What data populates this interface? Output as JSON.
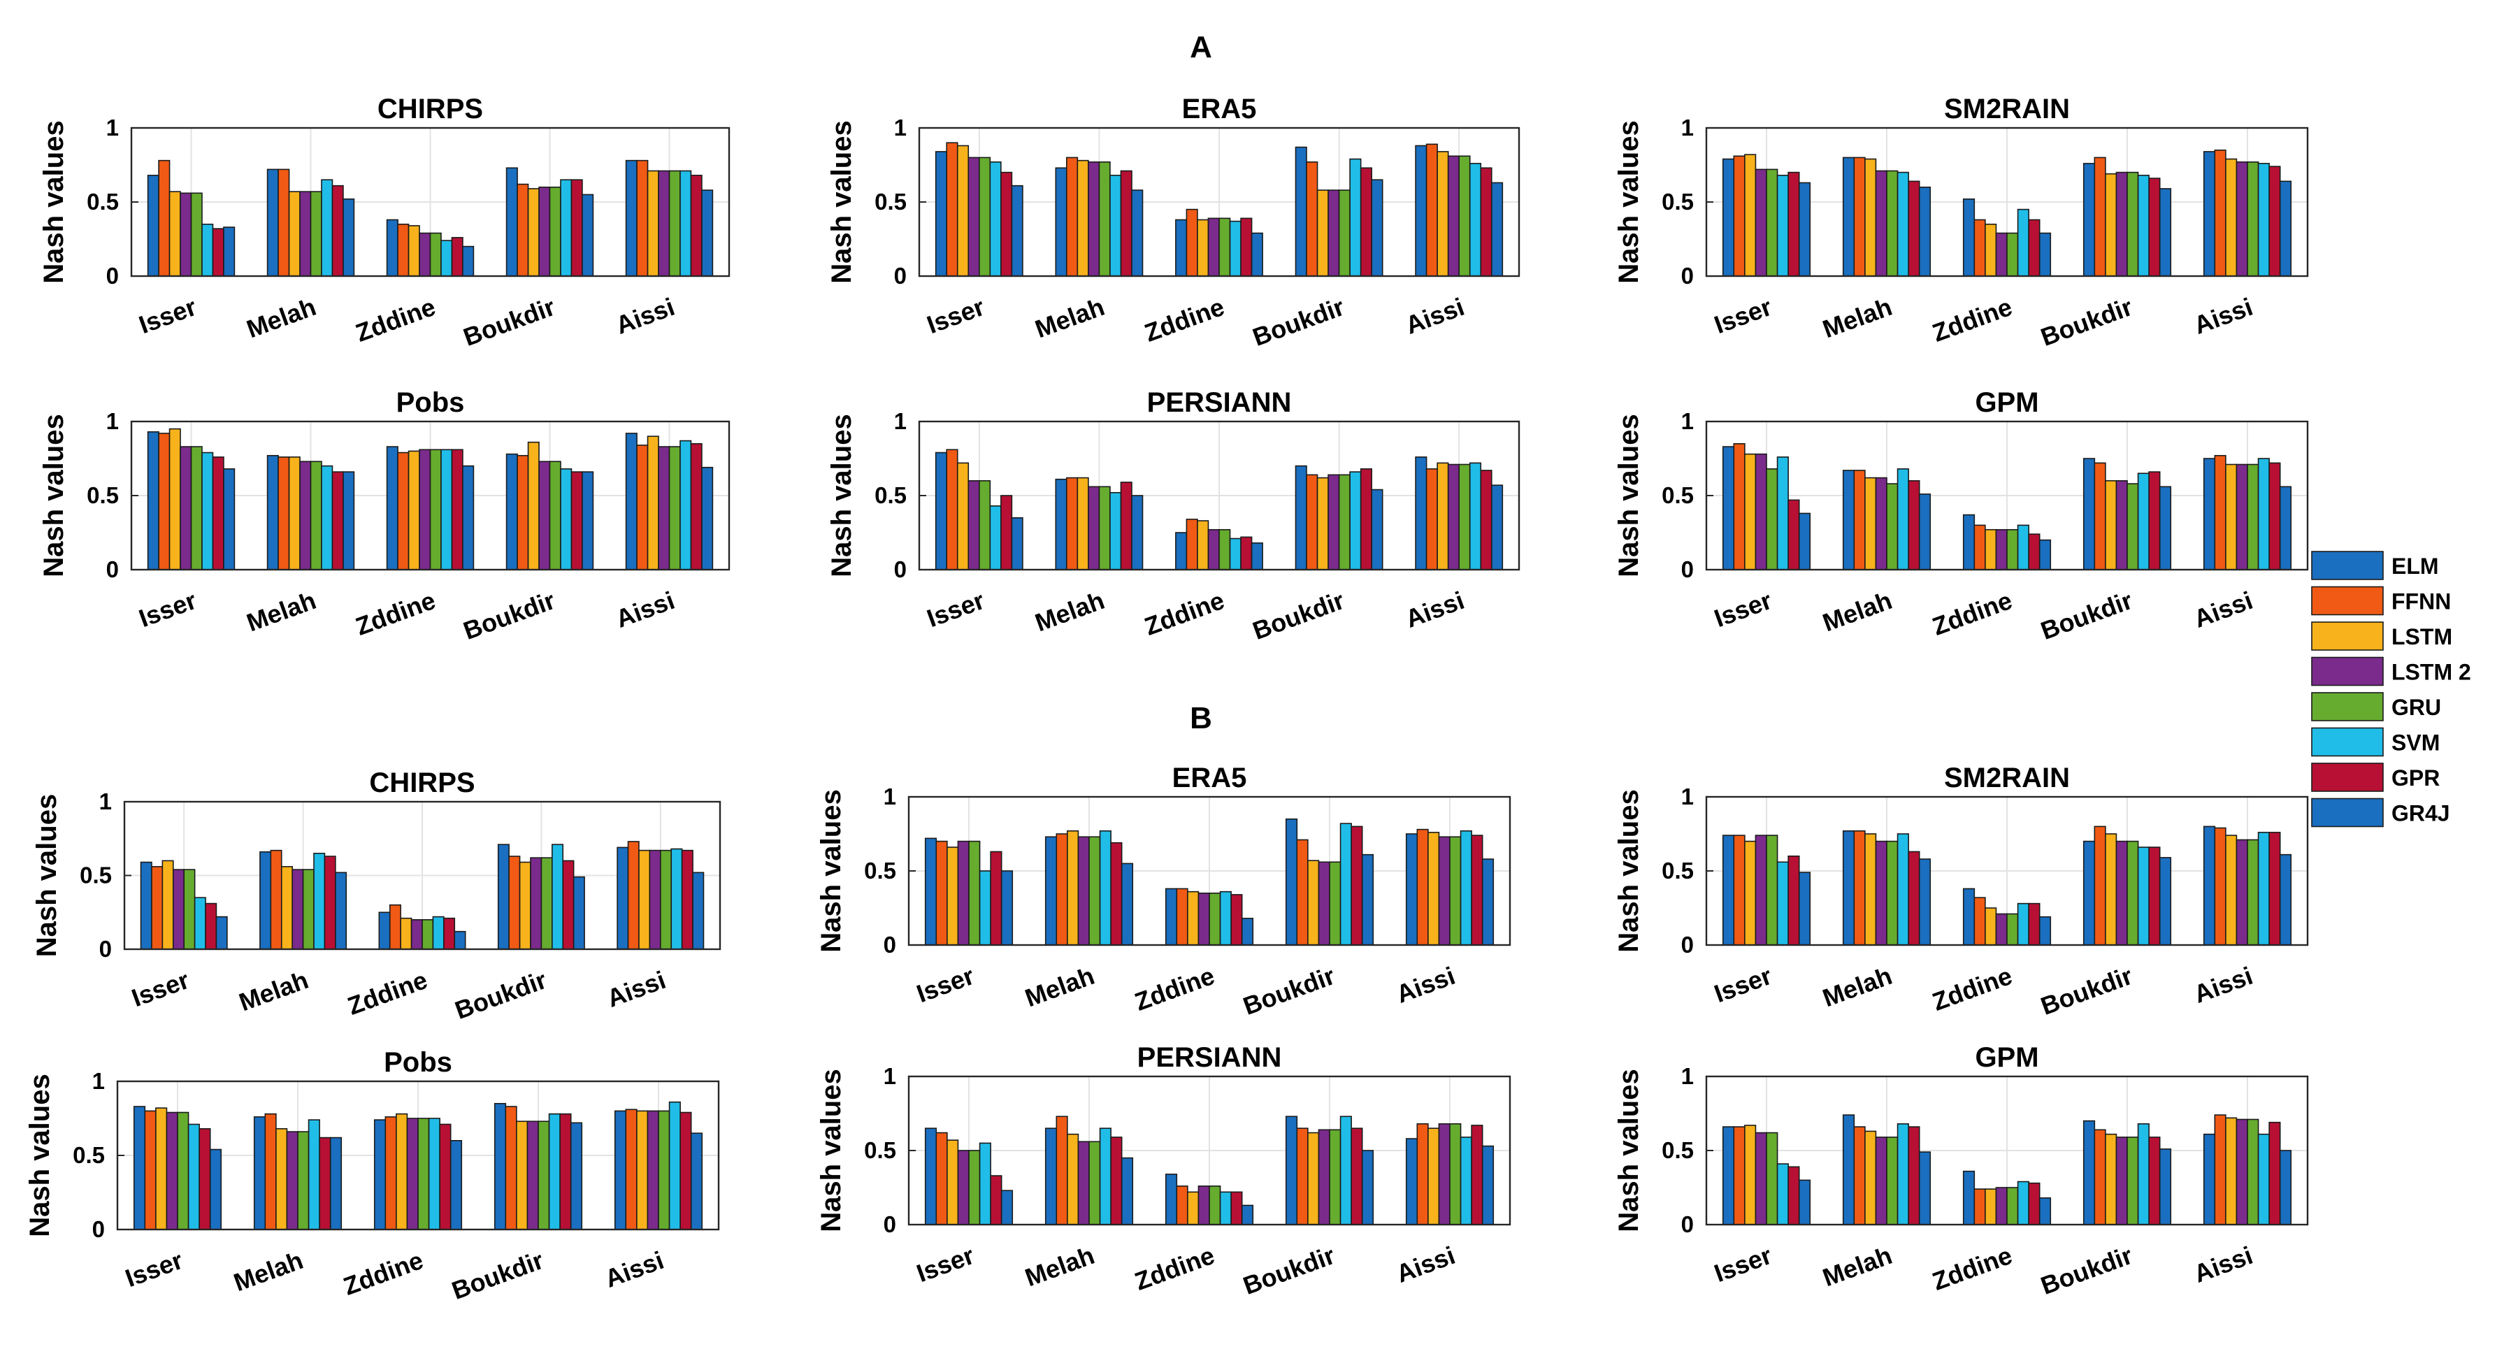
{
  "figure": {
    "section_labels": [
      "A",
      "B"
    ],
    "legend": {
      "items": [
        {
          "name": "ELM",
          "color": "#1a6fc0"
        },
        {
          "name": "FFNN",
          "color": "#f05a14"
        },
        {
          "name": "LSTM",
          "color": "#f8b21b"
        },
        {
          "name": "LSTM 2",
          "color": "#7b2b8c"
        },
        {
          "name": "GRU",
          "color": "#66ac2f"
        },
        {
          "name": "SVM",
          "color": "#20bde8"
        },
        {
          "name": "GPR",
          "color": "#b81034"
        },
        {
          "name": "GR4J",
          "color": "#1a6fc0"
        }
      ]
    }
  },
  "chart_data": [
    {
      "type": "bar",
      "section": "A",
      "title": "CHIRPS",
      "ylabel": "Nash values",
      "ylim": [
        0,
        1
      ],
      "yticks": [
        "0",
        "0.5",
        "1"
      ],
      "categories": [
        "Isser",
        "Melah",
        "Zddine",
        "Boukdir",
        "Aissi"
      ],
      "series_names": [
        "ELM",
        "FFNN",
        "LSTM",
        "LSTM 2",
        "GRU",
        "SVM",
        "GPR",
        "GR4J"
      ],
      "values": [
        [
          0.68,
          0.78,
          0.57,
          0.56,
          0.56,
          0.35,
          0.32,
          0.33
        ],
        [
          0.72,
          0.72,
          0.57,
          0.57,
          0.57,
          0.65,
          0.61,
          0.52
        ],
        [
          0.38,
          0.35,
          0.34,
          0.29,
          0.29,
          0.24,
          0.26,
          0.2
        ],
        [
          0.73,
          0.62,
          0.59,
          0.6,
          0.6,
          0.65,
          0.65,
          0.55
        ],
        [
          0.78,
          0.78,
          0.71,
          0.71,
          0.71,
          0.71,
          0.68,
          0.58
        ]
      ]
    },
    {
      "type": "bar",
      "section": "A",
      "title": "ERA5",
      "ylabel": "Nash values",
      "ylim": [
        0,
        1
      ],
      "yticks": [
        "0",
        "0.5",
        "1"
      ],
      "categories": [
        "Isser",
        "Melah",
        "Zddine",
        "Boukdir",
        "Aissi"
      ],
      "series_names": [
        "ELM",
        "FFNN",
        "LSTM",
        "LSTM 2",
        "GRU",
        "SVM",
        "GPR",
        "GR4J"
      ],
      "values": [
        [
          0.84,
          0.9,
          0.88,
          0.8,
          0.8,
          0.77,
          0.7,
          0.61
        ],
        [
          0.73,
          0.8,
          0.78,
          0.77,
          0.77,
          0.68,
          0.71,
          0.58
        ],
        [
          0.38,
          0.45,
          0.38,
          0.39,
          0.39,
          0.37,
          0.39,
          0.29
        ],
        [
          0.87,
          0.77,
          0.58,
          0.58,
          0.58,
          0.79,
          0.73,
          0.65
        ],
        [
          0.88,
          0.89,
          0.84,
          0.81,
          0.81,
          0.76,
          0.73,
          0.63
        ]
      ]
    },
    {
      "type": "bar",
      "section": "A",
      "title": "SM2RAIN",
      "ylabel": "Nash values",
      "ylim": [
        0,
        1
      ],
      "yticks": [
        "0",
        "0.5",
        "1"
      ],
      "categories": [
        "Isser",
        "Melah",
        "Zddine",
        "Boukdir",
        "Aissi"
      ],
      "series_names": [
        "ELM",
        "FFNN",
        "LSTM",
        "LSTM 2",
        "GRU",
        "SVM",
        "GPR",
        "GR4J"
      ],
      "values": [
        [
          0.79,
          0.81,
          0.82,
          0.72,
          0.72,
          0.68,
          0.7,
          0.63
        ],
        [
          0.8,
          0.8,
          0.79,
          0.71,
          0.71,
          0.7,
          0.64,
          0.6
        ],
        [
          0.52,
          0.38,
          0.35,
          0.29,
          0.29,
          0.45,
          0.38,
          0.29
        ],
        [
          0.76,
          0.8,
          0.69,
          0.7,
          0.7,
          0.68,
          0.66,
          0.59
        ],
        [
          0.84,
          0.85,
          0.79,
          0.77,
          0.77,
          0.76,
          0.74,
          0.64
        ]
      ]
    },
    {
      "type": "bar",
      "section": "A",
      "title": "Pobs",
      "ylabel": "Nash values",
      "ylim": [
        0,
        1
      ],
      "yticks": [
        "0",
        "0.5",
        "1"
      ],
      "categories": [
        "Isser",
        "Melah",
        "Zddine",
        "Boukdir",
        "Aissi"
      ],
      "series_names": [
        "ELM",
        "FFNN",
        "LSTM",
        "LSTM 2",
        "GRU",
        "SVM",
        "GPR",
        "GR4J"
      ],
      "values": [
        [
          0.93,
          0.92,
          0.95,
          0.83,
          0.83,
          0.79,
          0.76,
          0.68
        ],
        [
          0.77,
          0.76,
          0.76,
          0.73,
          0.73,
          0.7,
          0.66,
          0.66
        ],
        [
          0.83,
          0.79,
          0.8,
          0.81,
          0.81,
          0.81,
          0.81,
          0.7
        ],
        [
          0.78,
          0.77,
          0.86,
          0.73,
          0.73,
          0.68,
          0.66,
          0.66
        ],
        [
          0.92,
          0.84,
          0.9,
          0.83,
          0.83,
          0.87,
          0.85,
          0.69
        ]
      ]
    },
    {
      "type": "bar",
      "section": "A",
      "title": "PERSIANN",
      "ylabel": "Nash values",
      "ylim": [
        0,
        1
      ],
      "yticks": [
        "0",
        "0.5",
        "1"
      ],
      "categories": [
        "Isser",
        "Melah",
        "Zddine",
        "Boukdir",
        "Aissi"
      ],
      "series_names": [
        "ELM",
        "FFNN",
        "LSTM",
        "LSTM 2",
        "GRU",
        "SVM",
        "GPR",
        "GR4J"
      ],
      "values": [
        [
          0.79,
          0.81,
          0.72,
          0.6,
          0.6,
          0.43,
          0.5,
          0.35
        ],
        [
          0.61,
          0.62,
          0.62,
          0.56,
          0.56,
          0.52,
          0.59,
          0.5
        ],
        [
          0.25,
          0.34,
          0.33,
          0.27,
          0.27,
          0.21,
          0.22,
          0.18
        ],
        [
          0.7,
          0.64,
          0.62,
          0.64,
          0.64,
          0.66,
          0.68,
          0.54
        ],
        [
          0.76,
          0.68,
          0.72,
          0.71,
          0.71,
          0.72,
          0.67,
          0.57
        ]
      ]
    },
    {
      "type": "bar",
      "section": "A",
      "title": "GPM",
      "ylabel": "Nash values",
      "ylim": [
        0,
        1
      ],
      "yticks": [
        "0",
        "0.5",
        "1"
      ],
      "categories": [
        "Isser",
        "Melah",
        "Zddine",
        "Boukdir",
        "Aissi"
      ],
      "series_names": [
        "ELM",
        "FFNN",
        "LSTM",
        "LSTM 2",
        "GRU",
        "SVM",
        "GPR",
        "GR4J"
      ],
      "values": [
        [
          0.83,
          0.85,
          0.78,
          0.78,
          0.68,
          0.76,
          0.47,
          0.38
        ],
        [
          0.67,
          0.67,
          0.62,
          0.62,
          0.58,
          0.68,
          0.6,
          0.51
        ],
        [
          0.37,
          0.3,
          0.27,
          0.27,
          0.27,
          0.3,
          0.24,
          0.2
        ],
        [
          0.75,
          0.72,
          0.6,
          0.6,
          0.58,
          0.65,
          0.66,
          0.56
        ],
        [
          0.75,
          0.77,
          0.71,
          0.71,
          0.71,
          0.75,
          0.72,
          0.56
        ]
      ]
    },
    {
      "type": "bar",
      "section": "B",
      "title": "CHIRPS",
      "ylabel": "Nash values",
      "ylim": [
        0,
        1
      ],
      "yticks": [
        "0",
        "0.5",
        "1"
      ],
      "categories": [
        "Isser",
        "Melah",
        "Zddine",
        "Boukdir",
        "Aissi"
      ],
      "series_names": [
        "ELM",
        "FFNN",
        "LSTM",
        "LSTM 2",
        "GRU",
        "SVM",
        "GPR",
        "GR4J"
      ],
      "values": [
        [
          0.59,
          0.56,
          0.6,
          0.54,
          0.54,
          0.35,
          0.31,
          0.22
        ],
        [
          0.66,
          0.67,
          0.56,
          0.54,
          0.54,
          0.65,
          0.63,
          0.52
        ],
        [
          0.25,
          0.3,
          0.21,
          0.2,
          0.2,
          0.22,
          0.21,
          0.12
        ],
        [
          0.71,
          0.63,
          0.59,
          0.62,
          0.62,
          0.71,
          0.6,
          0.49
        ],
        [
          0.69,
          0.73,
          0.67,
          0.67,
          0.67,
          0.68,
          0.67,
          0.52
        ]
      ]
    },
    {
      "type": "bar",
      "section": "B",
      "title": "ERA5",
      "ylabel": "Nash values",
      "ylim": [
        0,
        1
      ],
      "yticks": [
        "0",
        "0.5",
        "1"
      ],
      "categories": [
        "Isser",
        "Melah",
        "Zddine",
        "Boukdir",
        "Aissi"
      ],
      "series_names": [
        "ELM",
        "FFNN",
        "LSTM",
        "LSTM 2",
        "GRU",
        "SVM",
        "GPR",
        "GR4J"
      ],
      "values": [
        [
          0.72,
          0.7,
          0.66,
          0.7,
          0.7,
          0.5,
          0.63,
          0.5
        ],
        [
          0.73,
          0.75,
          0.77,
          0.73,
          0.73,
          0.77,
          0.69,
          0.55
        ],
        [
          0.38,
          0.38,
          0.36,
          0.35,
          0.35,
          0.36,
          0.34,
          0.18
        ],
        [
          0.85,
          0.71,
          0.57,
          0.56,
          0.56,
          0.82,
          0.8,
          0.61
        ],
        [
          0.75,
          0.78,
          0.76,
          0.73,
          0.73,
          0.77,
          0.74,
          0.58
        ]
      ]
    },
    {
      "type": "bar",
      "section": "B",
      "title": "SM2RAIN",
      "ylabel": "Nash values",
      "ylim": [
        0,
        1
      ],
      "yticks": [
        "0",
        "0.5",
        "1"
      ],
      "categories": [
        "Isser",
        "Melah",
        "Zddine",
        "Boukdir",
        "Aissi"
      ],
      "series_names": [
        "ELM",
        "FFNN",
        "LSTM",
        "LSTM 2",
        "GRU",
        "SVM",
        "GPR",
        "GR4J"
      ],
      "values": [
        [
          0.74,
          0.74,
          0.7,
          0.74,
          0.74,
          0.56,
          0.6,
          0.49
        ],
        [
          0.77,
          0.77,
          0.75,
          0.7,
          0.7,
          0.75,
          0.63,
          0.58
        ],
        [
          0.38,
          0.32,
          0.25,
          0.21,
          0.21,
          0.28,
          0.28,
          0.19
        ],
        [
          0.7,
          0.8,
          0.75,
          0.7,
          0.7,
          0.66,
          0.66,
          0.59
        ],
        [
          0.8,
          0.79,
          0.74,
          0.71,
          0.71,
          0.76,
          0.76,
          0.61
        ]
      ]
    },
    {
      "type": "bar",
      "section": "B",
      "title": "Pobs",
      "ylabel": "Nash values",
      "ylim": [
        0,
        1
      ],
      "yticks": [
        "0",
        "0.5",
        "1"
      ],
      "categories": [
        "Isser",
        "Melah",
        "Zddine",
        "Boukdir",
        "Aissi"
      ],
      "series_names": [
        "ELM",
        "FFNN",
        "LSTM",
        "LSTM 2",
        "GRU",
        "SVM",
        "GPR",
        "GR4J"
      ],
      "values": [
        [
          0.83,
          0.8,
          0.82,
          0.79,
          0.79,
          0.71,
          0.68,
          0.54
        ],
        [
          0.76,
          0.78,
          0.68,
          0.66,
          0.66,
          0.74,
          0.62,
          0.62
        ],
        [
          0.74,
          0.76,
          0.78,
          0.75,
          0.75,
          0.75,
          0.71,
          0.6
        ],
        [
          0.85,
          0.83,
          0.73,
          0.73,
          0.73,
          0.78,
          0.78,
          0.72
        ],
        [
          0.8,
          0.81,
          0.8,
          0.8,
          0.8,
          0.86,
          0.79,
          0.65
        ]
      ]
    },
    {
      "type": "bar",
      "section": "B",
      "title": "PERSIANN",
      "ylabel": "Nash values",
      "ylim": [
        0,
        1
      ],
      "yticks": [
        "0",
        "0.5",
        "1"
      ],
      "categories": [
        "Isser",
        "Melah",
        "Zddine",
        "Boukdir",
        "Aissi"
      ],
      "series_names": [
        "ELM",
        "FFNN",
        "LSTM",
        "LSTM 2",
        "GRU",
        "SVM",
        "GPR",
        "GR4J"
      ],
      "values": [
        [
          0.65,
          0.62,
          0.57,
          0.5,
          0.5,
          0.55,
          0.33,
          0.23
        ],
        [
          0.65,
          0.73,
          0.61,
          0.56,
          0.56,
          0.65,
          0.59,
          0.45
        ],
        [
          0.34,
          0.26,
          0.22,
          0.26,
          0.26,
          0.22,
          0.22,
          0.13
        ],
        [
          0.73,
          0.65,
          0.62,
          0.64,
          0.64,
          0.73,
          0.65,
          0.5
        ],
        [
          0.58,
          0.68,
          0.65,
          0.68,
          0.68,
          0.59,
          0.67,
          0.53
        ]
      ]
    },
    {
      "type": "bar",
      "section": "B",
      "title": "GPM",
      "ylabel": "Nash values",
      "ylim": [
        0,
        1
      ],
      "yticks": [
        "0",
        "0.5",
        "1"
      ],
      "categories": [
        "Isser",
        "Melah",
        "Zddine",
        "Boukdir",
        "Aissi"
      ],
      "series_names": [
        "ELM",
        "FFNN",
        "LSTM",
        "LSTM 2",
        "GRU",
        "SVM",
        "GPR",
        "GR4J"
      ],
      "values": [
        [
          0.66,
          0.66,
          0.67,
          0.62,
          0.62,
          0.41,
          0.39,
          0.3
        ],
        [
          0.74,
          0.66,
          0.63,
          0.59,
          0.59,
          0.68,
          0.66,
          0.49
        ],
        [
          0.36,
          0.24,
          0.24,
          0.25,
          0.25,
          0.29,
          0.28,
          0.18
        ],
        [
          0.7,
          0.64,
          0.61,
          0.59,
          0.59,
          0.68,
          0.59,
          0.51
        ],
        [
          0.61,
          0.74,
          0.72,
          0.71,
          0.71,
          0.61,
          0.69,
          0.5
        ]
      ]
    }
  ]
}
